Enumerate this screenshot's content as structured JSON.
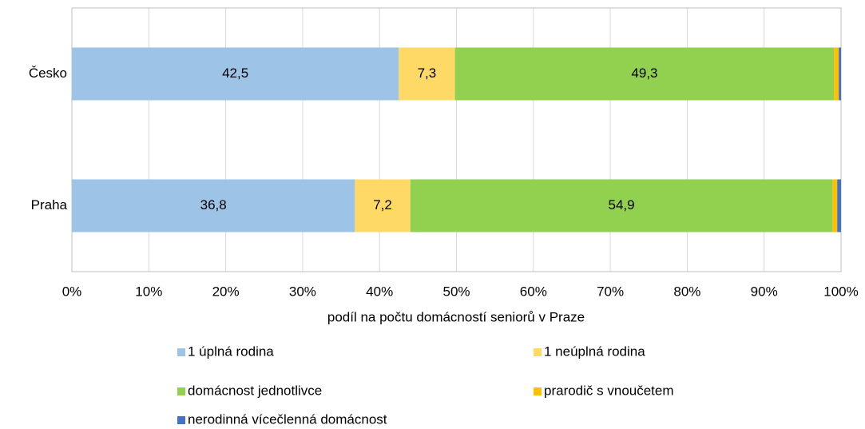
{
  "chart_data": {
    "type": "stacked-bar-horizontal",
    "x_label": "podíl na počtu domácností seniorů v Praze",
    "categories": [
      "Česko",
      "Praha"
    ],
    "series": [
      {
        "name": "1 úplná rodina",
        "color": "#9dc3e6",
        "values": [
          42.5,
          36.8
        ],
        "value_labels": [
          "42,5",
          "36,8"
        ]
      },
      {
        "name": "1 neúplná rodina",
        "color": "#ffd966",
        "values": [
          7.3,
          7.2
        ],
        "value_labels": [
          "7,3",
          "7,2"
        ]
      },
      {
        "name": "domácnost jednotlivce",
        "color": "#92d050",
        "values": [
          49.3,
          54.9
        ],
        "value_labels": [
          "49,3",
          "54,9"
        ]
      },
      {
        "name": "prarodič s vnoučetem",
        "color": "#ffc000",
        "values": [
          0.6,
          0.6
        ]
      },
      {
        "name": "nerodinná vícečlenná domácnost",
        "color": "#4472c4",
        "values": [
          0.3,
          0.5
        ]
      }
    ],
    "xlim": [
      0,
      100
    ],
    "xticks": [
      {
        "value": 0,
        "label": "0%"
      },
      {
        "value": 10,
        "label": "10%"
      },
      {
        "value": 20,
        "label": "20%"
      },
      {
        "value": 30,
        "label": "30%"
      },
      {
        "value": 40,
        "label": "40%"
      },
      {
        "value": 50,
        "label": "50%"
      },
      {
        "value": 60,
        "label": "60%"
      },
      {
        "value": 70,
        "label": "70%"
      },
      {
        "value": 80,
        "label": "80%"
      },
      {
        "value": 90,
        "label": "90%"
      },
      {
        "value": 100,
        "label": "100%"
      }
    ],
    "grid": true
  }
}
